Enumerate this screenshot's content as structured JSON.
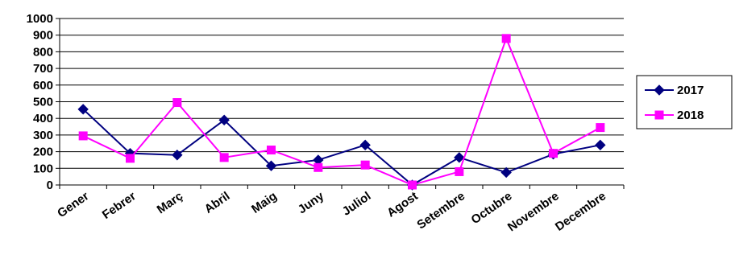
{
  "chart_data": {
    "type": "line",
    "categories": [
      "Gener",
      "Febrer",
      "Març",
      "Abril",
      "Maig",
      "Juny",
      "Juliol",
      "Agost",
      "Setembre",
      "Octubre",
      "Novembre",
      "Decembre"
    ],
    "series": [
      {
        "name": "2017",
        "color": "#000080",
        "marker": "diamond",
        "values": [
          455,
          190,
          180,
          390,
          115,
          150,
          240,
          0,
          165,
          75,
          185,
          240
        ]
      },
      {
        "name": "2018",
        "color": "#ff00ff",
        "marker": "square",
        "values": [
          295,
          160,
          495,
          165,
          210,
          105,
          120,
          0,
          80,
          880,
          190,
          345
        ]
      }
    ],
    "ylim": [
      0,
      1000
    ],
    "yticks": [
      "0",
      "100",
      "200",
      "300",
      "400",
      "500",
      "600",
      "700",
      "800",
      "900",
      "1000"
    ],
    "grid": true,
    "legend": "right"
  }
}
